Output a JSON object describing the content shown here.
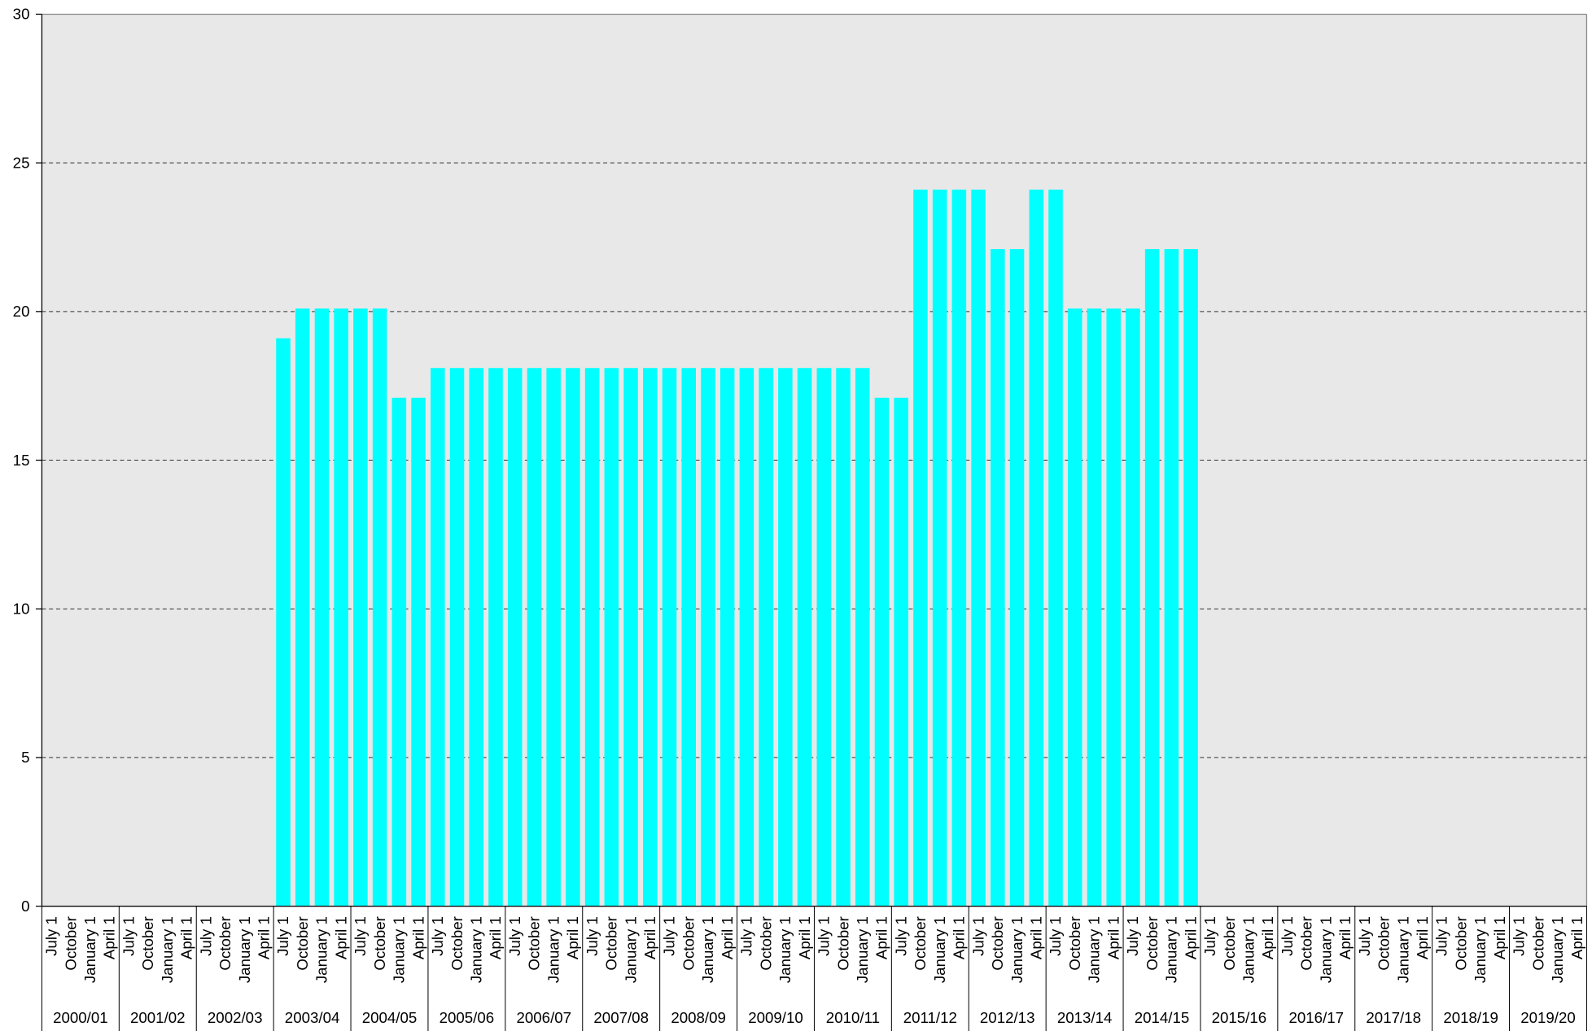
{
  "chart_data": {
    "type": "bar",
    "categories": [
      "July 1",
      "October",
      "January 1",
      "April 1",
      "July 1",
      "October",
      "January 1",
      "April 1",
      "July 1",
      "October",
      "January 1",
      "April 1",
      "July 1",
      "October",
      "January 1",
      "April 1",
      "July 1",
      "October",
      "January 1",
      "April 1",
      "July 1",
      "October",
      "January 1",
      "April 1",
      "July 1",
      "October",
      "January 1",
      "April 1",
      "July 1",
      "October",
      "January 1",
      "April 1",
      "July 1",
      "October",
      "January 1",
      "April 1",
      "July 1",
      "October",
      "January 1",
      "April 1",
      "July 1",
      "October",
      "January 1",
      "April 1",
      "July 1",
      "October",
      "January 1",
      "April 1",
      "July 1",
      "October",
      "January 1",
      "April 1",
      "July 1",
      "October",
      "January 1",
      "April 1",
      "July 1",
      "October",
      "January 1",
      "April 1",
      "July 1",
      "October",
      "January 1",
      "April 1",
      "July 1",
      "October",
      "January 1",
      "April 1",
      "July 1",
      "October",
      "January 1",
      "April 1",
      "July 1",
      "October",
      "January 1",
      "April 1",
      "July 1",
      "October",
      "January 1",
      "April 1"
    ],
    "groups": [
      "2000/01",
      "2001/02",
      "2002/03",
      "2003/04",
      "2004/05",
      "2005/06",
      "2006/07",
      "2007/08",
      "2008/09",
      "2009/10",
      "2010/11",
      "2011/12",
      "2012/13",
      "2013/14",
      "2014/15",
      "2015/16",
      "2016/17",
      "2017/18",
      "2018/19",
      "2019/20"
    ],
    "values": [
      null,
      null,
      null,
      null,
      null,
      null,
      null,
      null,
      null,
      null,
      null,
      null,
      19.1,
      20.1,
      20.1,
      20.1,
      20.1,
      20.1,
      17.1,
      17.1,
      18.1,
      18.1,
      18.1,
      18.1,
      18.1,
      18.1,
      18.1,
      18.1,
      18.1,
      18.1,
      18.1,
      18.1,
      18.1,
      18.1,
      18.1,
      18.1,
      18.1,
      18.1,
      18.1,
      18.1,
      18.1,
      18.1,
      18.1,
      17.1,
      17.1,
      24.1,
      24.1,
      24.1,
      24.1,
      22.1,
      22.1,
      24.1,
      24.1,
      20.1,
      20.1,
      20.1,
      20.1,
      22.1,
      22.1,
      22.1,
      null,
      null,
      null,
      null,
      null,
      null,
      null,
      null,
      null,
      null,
      null,
      null,
      null,
      null,
      null,
      null,
      null,
      null,
      null,
      null
    ],
    "color": "#00ffff",
    "ylim": [
      0,
      30
    ],
    "yticks": [
      0,
      5,
      10,
      15,
      20,
      25,
      30
    ],
    "grid": true,
    "plot_background": "#e8e8e8"
  }
}
